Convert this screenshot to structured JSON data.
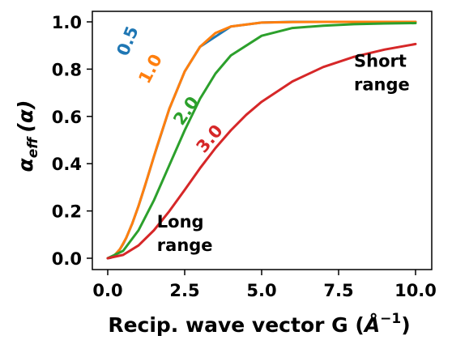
{
  "chart_data": {
    "type": "line",
    "title": "",
    "xlabel_main": "Recip. wave vector G (",
    "xlabel_unit": "Å",
    "xlabel_exp": "−1",
    "xlabel_close": ")",
    "ylabel_main": "α",
    "ylabel_sub": "eff",
    "ylabel_paren": "(α)",
    "xlim": [
      0,
      10
    ],
    "ylim": [
      0,
      1.0
    ],
    "x_ticks": [
      0.0,
      2.5,
      5.0,
      7.5,
      10.0
    ],
    "x_tick_labels": [
      "0.0",
      "2.5",
      "5.0",
      "7.5",
      "10.0"
    ],
    "y_ticks": [
      0.0,
      0.2,
      0.4,
      0.6,
      0.8,
      1.0
    ],
    "y_tick_labels": [
      "0.0",
      "0.2",
      "0.4",
      "0.6",
      "0.8",
      "1.0"
    ],
    "grid": false,
    "legend": "none",
    "annotations": [
      {
        "text": "Short",
        "x": 8.0,
        "y": 0.81
      },
      {
        "text": "range",
        "x": 8.0,
        "y": 0.71
      },
      {
        "text": "Long",
        "x": 1.6,
        "y": 0.13
      },
      {
        "text": "range",
        "x": 1.6,
        "y": 0.03
      }
    ],
    "series": [
      {
        "name": "0.5",
        "color": "#1f77b4",
        "x": [
          0,
          0.1,
          0.2,
          0.3,
          0.4,
          0.5,
          0.6,
          0.8,
          1.0,
          1.2,
          1.5,
          2.0,
          2.5,
          3.0,
          4.0,
          5.0,
          6.0,
          8.0,
          10.0
        ],
        "y": [
          0,
          0.002,
          0.01,
          0.022,
          0.039,
          0.06,
          0.086,
          0.148,
          0.221,
          0.302,
          0.43,
          0.632,
          0.79,
          0.895,
          0.98,
          0.997,
          1.0,
          1.0,
          1.0
        ],
        "label_x": 0.82,
        "label_y": 0.91,
        "label_angle": -68
      },
      {
        "name": "1.0",
        "color": "#ff7f0e",
        "x": [
          0,
          0.2,
          0.4,
          0.6,
          0.8,
          1.0,
          1.3,
          1.6,
          2.0,
          2.5,
          3.0,
          3.5,
          4.0,
          5.0,
          6.0,
          7.0,
          8.0,
          9.0,
          10.0
        ],
        "y": [
          0,
          0.01,
          0.039,
          0.086,
          0.148,
          0.221,
          0.345,
          0.473,
          0.632,
          0.79,
          0.895,
          0.953,
          0.98,
          0.997,
          0.999,
          1.0,
          1.0,
          1.0,
          1.0
        ],
        "label_x": 1.55,
        "label_y": 0.79,
        "label_angle": -62
      },
      {
        "name": "2.0",
        "color": "#2ca02c",
        "x": [
          0,
          0.5,
          1.0,
          1.5,
          2.0,
          2.5,
          3.0,
          3.5,
          4.0,
          5.0,
          6.0,
          7.0,
          8.0,
          9.0,
          10.0
        ],
        "y": [
          0,
          0.031,
          0.118,
          0.245,
          0.393,
          0.541,
          0.675,
          0.781,
          0.858,
          0.941,
          0.974,
          0.984,
          0.99,
          0.993,
          0.995
        ],
        "label_x": 2.7,
        "label_y": 0.61,
        "label_angle": -55
      },
      {
        "name": "3.0",
        "color": "#d62728",
        "x": [
          0,
          0.5,
          1.0,
          1.5,
          2.0,
          2.5,
          3.0,
          3.5,
          4.0,
          4.5,
          5.0,
          6.0,
          7.0,
          8.0,
          9.0,
          10.0
        ],
        "y": [
          0,
          0.014,
          0.054,
          0.118,
          0.199,
          0.289,
          0.381,
          0.466,
          0.541,
          0.607,
          0.662,
          0.748,
          0.809,
          0.852,
          0.883,
          0.906
        ],
        "label_x": 3.45,
        "label_y": 0.49,
        "label_angle": -50
      }
    ]
  }
}
